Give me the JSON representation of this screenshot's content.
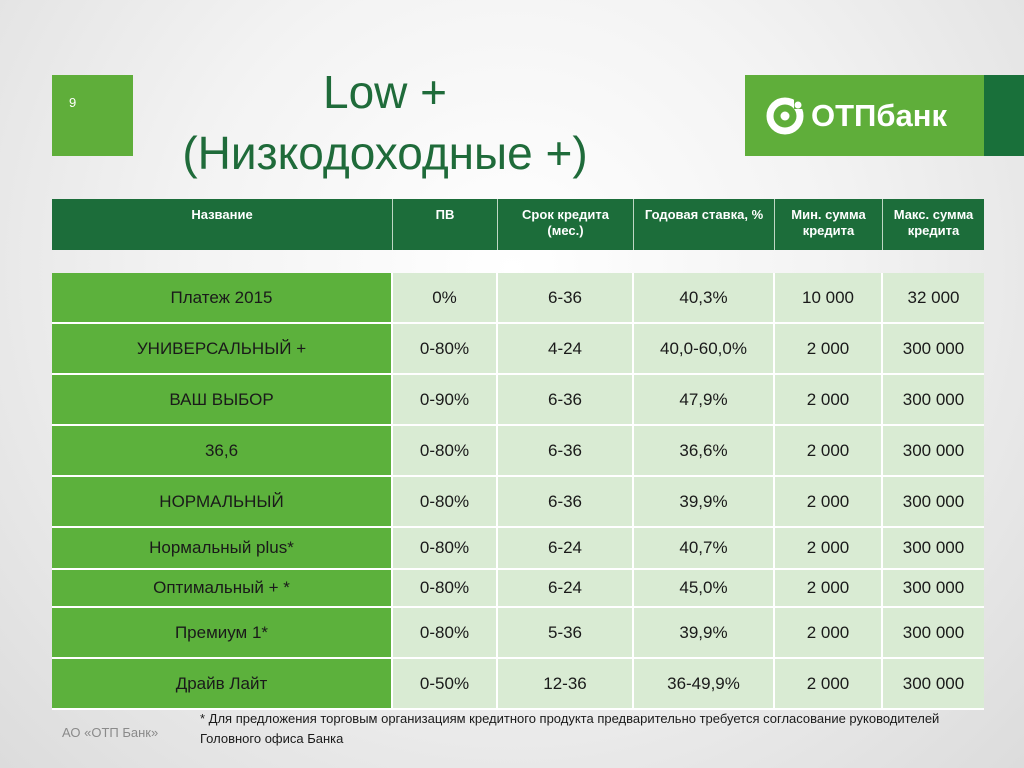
{
  "slide": {
    "number": "9"
  },
  "title": {
    "line1": "Low +",
    "line2": "(Низкодоходные +)"
  },
  "logo": {
    "text": "ОТПбанк"
  },
  "colors": {
    "green": "#5fae3a",
    "dark_green": "#1c6d3a",
    "light_green": "#d9ebd3"
  },
  "table": {
    "headers": [
      "Название",
      "ПВ",
      "Срок кредита\n(мес.)",
      "Годовая ставка, %",
      "Мин. сумма\nкредита",
      "Макс. сумма\nкредита"
    ],
    "rows": [
      [
        "Платеж 2015",
        "0%",
        "6-36",
        "40,3%",
        "10 000",
        "32 000"
      ],
      [
        "УНИВЕРСАЛЬНЫЙ +",
        "0-80%",
        "4-24",
        "40,0-60,0%",
        "2 000",
        "300 000"
      ],
      [
        "ВАШ ВЫБОР",
        "0-90%",
        "6-36",
        "47,9%",
        "2 000",
        "300 000"
      ],
      [
        "36,6",
        "0-80%",
        "6-36",
        "36,6%",
        "2 000",
        "300 000"
      ],
      [
        "НОРМАЛЬНЫЙ",
        "0-80%",
        "6-36",
        "39,9%",
        "2 000",
        "300 000"
      ],
      [
        "Нормальный plus*",
        "0-80%",
        "6-24",
        "40,7%",
        "2 000",
        "300 000"
      ],
      [
        "Оптимальный + *",
        "0-80%",
        "6-24",
        "45,0%",
        "2 000",
        "300 000"
      ],
      [
        "Премиум 1*",
        "0-80%",
        "5-36",
        "39,9%",
        "2 000",
        "300 000"
      ],
      [
        "Драйв Лайт",
        "0-50%",
        "12-36",
        "36-49,9%",
        "2 000",
        "300 000"
      ]
    ]
  },
  "footnote": "* Для предложения торговым организациям кредитного продукта предварительно требуется согласование руководителей Головного офиса Банка",
  "copyright": "АО «ОТП Банк»"
}
